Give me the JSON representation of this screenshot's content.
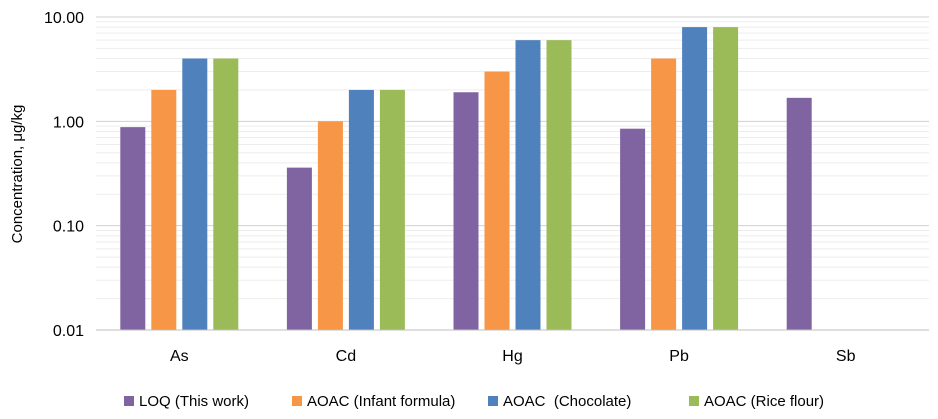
{
  "chart_data": {
    "type": "bar",
    "scale": "log",
    "title": "",
    "xlabel": "",
    "ylabel": "Concentration, μg/kg",
    "ylim": [
      0.01,
      10
    ],
    "y_ticks": [
      {
        "value": 10,
        "label": "10.00"
      },
      {
        "value": 1,
        "label": "1.00"
      },
      {
        "value": 0.1,
        "label": "0.10"
      },
      {
        "value": 0.01,
        "label": "0.01"
      }
    ],
    "categories": [
      "As",
      "Cd",
      "Hg",
      "Pb",
      "Sb"
    ],
    "series": [
      {
        "name": "LOQ (This work)",
        "color": "#8064a2",
        "values": [
          0.88,
          0.36,
          1.9,
          0.85,
          1.68
        ]
      },
      {
        "name": "AOAC (Infant formula)",
        "color": "#f79646",
        "values": [
          2,
          1,
          3,
          4,
          null
        ]
      },
      {
        "name": "AOAC  (Chocolate)",
        "color": "#4f81bd",
        "values": [
          4,
          2,
          6,
          8,
          null
        ]
      },
      {
        "name": "AOAC (Rice flour)",
        "color": "#9bbb59",
        "values": [
          4,
          2,
          6,
          8,
          null
        ]
      }
    ],
    "grid": true,
    "legend_position": "bottom"
  }
}
